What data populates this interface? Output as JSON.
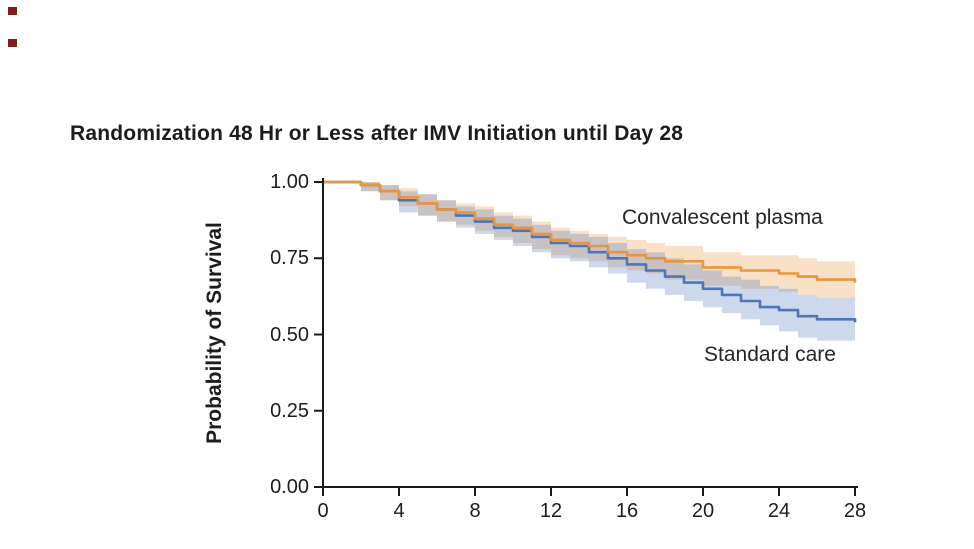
{
  "page": {
    "background": "#ffffff"
  },
  "decor": {
    "marker_color": "#7f1d1d"
  },
  "chart_data": {
    "type": "line",
    "subtype": "kaplan-meier-step-with-confidence-bands",
    "title": "Randomization 48 Hr or Less after IMV Initiation until Day 28",
    "xlabel": "",
    "ylabel": "Probability of Survival",
    "xlim": [
      0,
      28
    ],
    "ylim": [
      0.0,
      1.0
    ],
    "x_ticks": [
      "0",
      "4",
      "8",
      "12",
      "16",
      "20",
      "24",
      "28"
    ],
    "x_tick_values": [
      0,
      4,
      8,
      12,
      16,
      20,
      24,
      28
    ],
    "y_ticks": [
      "1.00",
      "0.75",
      "0.50",
      "0.25",
      "0.00"
    ],
    "y_tick_values": [
      1.0,
      0.75,
      0.5,
      0.25,
      0.0
    ],
    "grid": false,
    "legend_position": "inline-annotations",
    "axis_color": "#1a1a1a",
    "series": [
      {
        "name": "Convalescent plasma",
        "color": "#E8953B",
        "band_color": "rgba(232,149,59,0.28)",
        "times": [
          0,
          2,
          3,
          4,
          5,
          6,
          7,
          8,
          9,
          10,
          11,
          12,
          13,
          14,
          15,
          16,
          17,
          18,
          20,
          22,
          24,
          25,
          26,
          28
        ],
        "survival": [
          1.0,
          0.99,
          0.97,
          0.95,
          0.93,
          0.91,
          0.9,
          0.88,
          0.86,
          0.85,
          0.83,
          0.81,
          0.8,
          0.79,
          0.77,
          0.76,
          0.75,
          0.74,
          0.72,
          0.71,
          0.7,
          0.69,
          0.68,
          0.67
        ],
        "ci_upper": [
          1.0,
          1.0,
          0.99,
          0.98,
          0.96,
          0.94,
          0.93,
          0.92,
          0.9,
          0.89,
          0.87,
          0.85,
          0.84,
          0.83,
          0.82,
          0.81,
          0.8,
          0.79,
          0.77,
          0.76,
          0.76,
          0.75,
          0.74,
          0.73
        ],
        "ci_lower": [
          1.0,
          0.97,
          0.94,
          0.92,
          0.89,
          0.87,
          0.86,
          0.84,
          0.82,
          0.8,
          0.78,
          0.76,
          0.75,
          0.74,
          0.72,
          0.71,
          0.7,
          0.68,
          0.66,
          0.65,
          0.64,
          0.63,
          0.62,
          0.6
        ]
      },
      {
        "name": "Standard care",
        "color": "#4F74B9",
        "band_color": "rgba(79,116,185,0.28)",
        "times": [
          0,
          2,
          3,
          4,
          5,
          6,
          7,
          8,
          9,
          10,
          11,
          12,
          13,
          14,
          15,
          16,
          17,
          18,
          19,
          20,
          21,
          22,
          23,
          24,
          25,
          26,
          28
        ],
        "survival": [
          1.0,
          0.99,
          0.97,
          0.94,
          0.93,
          0.91,
          0.89,
          0.87,
          0.85,
          0.84,
          0.82,
          0.8,
          0.79,
          0.77,
          0.75,
          0.73,
          0.71,
          0.69,
          0.67,
          0.65,
          0.63,
          0.61,
          0.59,
          0.58,
          0.56,
          0.55,
          0.54
        ],
        "ci_upper": [
          1.0,
          1.0,
          0.99,
          0.97,
          0.96,
          0.94,
          0.92,
          0.91,
          0.89,
          0.88,
          0.86,
          0.84,
          0.83,
          0.82,
          0.8,
          0.78,
          0.77,
          0.75,
          0.73,
          0.71,
          0.69,
          0.68,
          0.66,
          0.65,
          0.63,
          0.62,
          0.61
        ],
        "ci_lower": [
          1.0,
          0.97,
          0.94,
          0.9,
          0.89,
          0.87,
          0.85,
          0.83,
          0.81,
          0.79,
          0.77,
          0.75,
          0.74,
          0.72,
          0.7,
          0.67,
          0.65,
          0.63,
          0.61,
          0.59,
          0.57,
          0.55,
          0.53,
          0.51,
          0.49,
          0.48,
          0.47
        ]
      }
    ]
  }
}
